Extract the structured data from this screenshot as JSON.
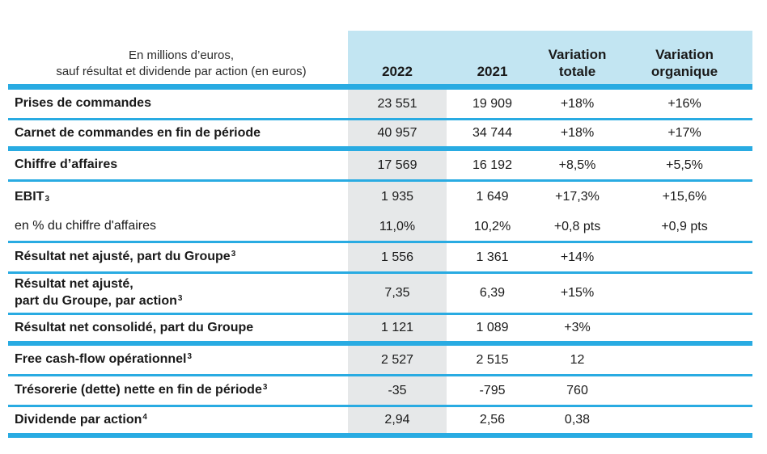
{
  "colors": {
    "accent_line": "#29abe2",
    "header_bg": "#c2e5f2",
    "col2022_band": "#e6e8e9",
    "text": "#1a1a1a"
  },
  "header": {
    "unit_note_line1": "En millions d’euros,",
    "unit_note_line2": "sauf résultat et dividende par action (en euros)",
    "columns": [
      {
        "label": "2022",
        "label2": ""
      },
      {
        "label": "2021",
        "label2": ""
      },
      {
        "label": "Variation",
        "label2": "totale"
      },
      {
        "label": "Variation",
        "label2": "organique"
      }
    ]
  },
  "table": {
    "rows": [
      {
        "label_lines": [
          "Prises de commandes"
        ],
        "marker": "",
        "marker_type": "",
        "muted": false,
        "tall": false,
        "sep": "thin",
        "values": [
          "23 551",
          "19 909",
          "+18%",
          "+16%"
        ]
      },
      {
        "label_lines": [
          "Carnet de commandes en fin de période"
        ],
        "marker": "",
        "marker_type": "",
        "muted": false,
        "tall": false,
        "sep": "thick",
        "values": [
          "40 957",
          "34 744",
          "+18%",
          "+17%"
        ]
      },
      {
        "label_lines": [
          "Chiffre d’affaires"
        ],
        "marker": "",
        "marker_type": "",
        "muted": false,
        "tall": false,
        "sep": "thin",
        "values": [
          "17 569",
          "16 192",
          "+8,5%",
          "+5,5%"
        ]
      },
      {
        "label_lines": [
          "EBIT"
        ],
        "marker": "3",
        "marker_type": "sub",
        "muted": false,
        "tall": false,
        "sep": "none",
        "values": [
          "1 935",
          "1 649",
          "+17,3%",
          "+15,6%"
        ]
      },
      {
        "label_lines": [
          "en % du chiffre d'affaires"
        ],
        "marker": "",
        "marker_type": "",
        "muted": true,
        "tall": false,
        "sep": "thin",
        "values": [
          "11,0%",
          "10,2%",
          "+0,8 pts",
          "+0,9 pts"
        ]
      },
      {
        "label_lines": [
          "Résultat net ajusté, part du Groupe"
        ],
        "marker": "3",
        "marker_type": "sup",
        "muted": false,
        "tall": false,
        "sep": "thin",
        "values": [
          "1 556",
          "1 361",
          "+14%",
          ""
        ]
      },
      {
        "label_lines": [
          "Résultat net ajusté,",
          "part du Groupe, par action"
        ],
        "marker": "3",
        "marker_type": "sup",
        "muted": false,
        "tall": true,
        "sep": "thin",
        "values": [
          "7,35",
          "6,39",
          "+15%",
          ""
        ]
      },
      {
        "label_lines": [
          "Résultat net consolidé, part du Groupe"
        ],
        "marker": "",
        "marker_type": "",
        "muted": false,
        "tall": false,
        "sep": "thick",
        "values": [
          "1 121",
          "1 089",
          "+3%",
          ""
        ]
      },
      {
        "label_lines": [
          "Free cash-flow opérationnel"
        ],
        "marker": "3",
        "marker_type": "sup",
        "muted": false,
        "tall": false,
        "sep": "thin",
        "values": [
          "2 527",
          "2 515",
          "12",
          ""
        ]
      },
      {
        "label_lines": [
          "Trésorerie (dette) nette en fin de période"
        ],
        "marker": "3",
        "marker_type": "sup",
        "muted": false,
        "tall": false,
        "sep": "thin",
        "values": [
          "-35",
          "-795",
          "760",
          ""
        ]
      },
      {
        "label_lines": [
          "Dividende par action"
        ],
        "marker": "4",
        "marker_type": "sup",
        "muted": false,
        "tall": false,
        "sep": "thick",
        "values": [
          "2,94",
          "2,56",
          "0,38",
          ""
        ]
      }
    ]
  }
}
